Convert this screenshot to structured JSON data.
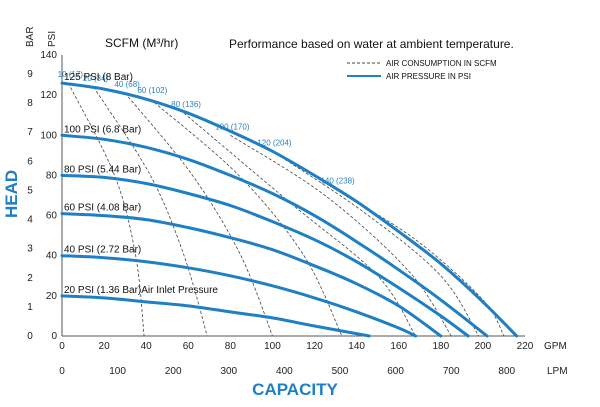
{
  "chart_data": {
    "type": "line",
    "title": "Performance based on water at ambient temperature.",
    "scfm_label": "SCFM (M³/hr)",
    "ylabel": "HEAD",
    "xlabel": "CAPACITY",
    "y_left_unit": "BAR",
    "y_right_unit": "PSI",
    "x_top_unit": "GPM",
    "x_bottom_unit": "LPM",
    "xlim_gpm": [
      0,
      220
    ],
    "ylim_psi": [
      0,
      140
    ],
    "gpm_ticks": [
      0,
      20,
      40,
      60,
      80,
      100,
      120,
      140,
      160,
      180,
      200,
      220
    ],
    "lpm_ticks": [
      0,
      100,
      200,
      300,
      400,
      500,
      600,
      700,
      800
    ],
    "psi_ticks": [
      0,
      20,
      40,
      60,
      80,
      100,
      120,
      140
    ],
    "bar_ticks": [
      0,
      1,
      2,
      3,
      4,
      5,
      6,
      7,
      8,
      9
    ],
    "legend": {
      "placement": "top-right",
      "air_consumption": "AIR CONSUMPTION IN SCFM",
      "air_pressure": "AIR PRESSURE IN PSI"
    },
    "colors": {
      "pressure": "#1f7fc4",
      "consumption": "#444444",
      "accent": "#2a83c6"
    },
    "pressure_series": [
      {
        "name": "125 PSI (8 Bar)",
        "max_gpm": 216,
        "x": [
          0,
          20,
          40,
          60,
          80,
          100,
          120,
          140,
          160,
          180,
          200,
          216
        ],
        "y": [
          126,
          123,
          118,
          111,
          102,
          92,
          80,
          67,
          52,
          36,
          17,
          0
        ]
      },
      {
        "name": "100 PSI (6.8 Bar)",
        "max_gpm": 202,
        "x": [
          0,
          20,
          40,
          60,
          80,
          100,
          120,
          140,
          160,
          180,
          202
        ],
        "y": [
          100,
          98,
          94,
          88,
          80,
          71,
          60,
          47,
          33,
          18,
          0
        ]
      },
      {
        "name": "80 PSI (5.44 Bar)",
        "max_gpm": 193,
        "x": [
          0,
          20,
          40,
          60,
          80,
          100,
          120,
          140,
          160,
          180,
          193
        ],
        "y": [
          80,
          79,
          76,
          71,
          65,
          57,
          48,
          37,
          24,
          10,
          0
        ]
      },
      {
        "name": "60 PSI (4.08 Bar)",
        "max_gpm": 180,
        "x": [
          0,
          20,
          40,
          60,
          80,
          100,
          120,
          140,
          160,
          180
        ],
        "y": [
          61,
          60,
          58,
          54,
          49,
          43,
          35,
          26,
          15,
          0
        ]
      },
      {
        "name": "40 PSI (2.72 Bar)",
        "max_gpm": 168,
        "x": [
          0,
          20,
          40,
          60,
          80,
          100,
          120,
          140,
          160,
          168
        ],
        "y": [
          40,
          39,
          37,
          34,
          30,
          25,
          19,
          12,
          4,
          0
        ]
      },
      {
        "name": "20 PSI (1.36 Bar)Air Inlet Pressure",
        "max_gpm": 146,
        "x": [
          0,
          20,
          40,
          60,
          80,
          100,
          120,
          146
        ],
        "y": [
          20,
          19,
          17,
          15,
          12,
          9,
          5,
          0
        ]
      }
    ],
    "consumption_series": [
      {
        "name": "10 (17)",
        "points": [
          [
            3,
            126
          ],
          [
            25,
            80
          ],
          [
            35,
            40
          ],
          [
            39,
            0
          ]
        ]
      },
      {
        "name": "20 (34)",
        "points": [
          [
            15,
            124
          ],
          [
            42,
            80
          ],
          [
            58,
            40
          ],
          [
            69,
            0
          ]
        ]
      },
      {
        "name": "40 (68)",
        "points": [
          [
            30,
            121
          ],
          [
            62,
            80
          ],
          [
            85,
            40
          ],
          [
            100,
            0
          ]
        ]
      },
      {
        "name": "60 (102)",
        "points": [
          [
            42,
            118
          ],
          [
            84,
            80
          ],
          [
            115,
            40
          ],
          [
            133,
            0
          ]
        ]
      },
      {
        "name": "80 (136)",
        "points": [
          [
            58,
            111
          ],
          [
            110,
            65
          ],
          [
            150,
            30
          ],
          [
            168,
            0
          ]
        ]
      },
      {
        "name": "100 (170)",
        "points": [
          [
            80,
            100
          ],
          [
            125,
            70
          ],
          [
            165,
            32
          ],
          [
            185,
            0
          ]
        ]
      },
      {
        "name": "120 (204)",
        "points": [
          [
            100,
            92
          ],
          [
            143,
            62
          ],
          [
            180,
            30
          ],
          [
            198,
            0
          ]
        ]
      },
      {
        "name": "140 (238)",
        "points": [
          [
            130,
            73
          ],
          [
            168,
            48
          ],
          [
            200,
            18
          ],
          [
            210,
            0
          ]
        ]
      }
    ]
  }
}
